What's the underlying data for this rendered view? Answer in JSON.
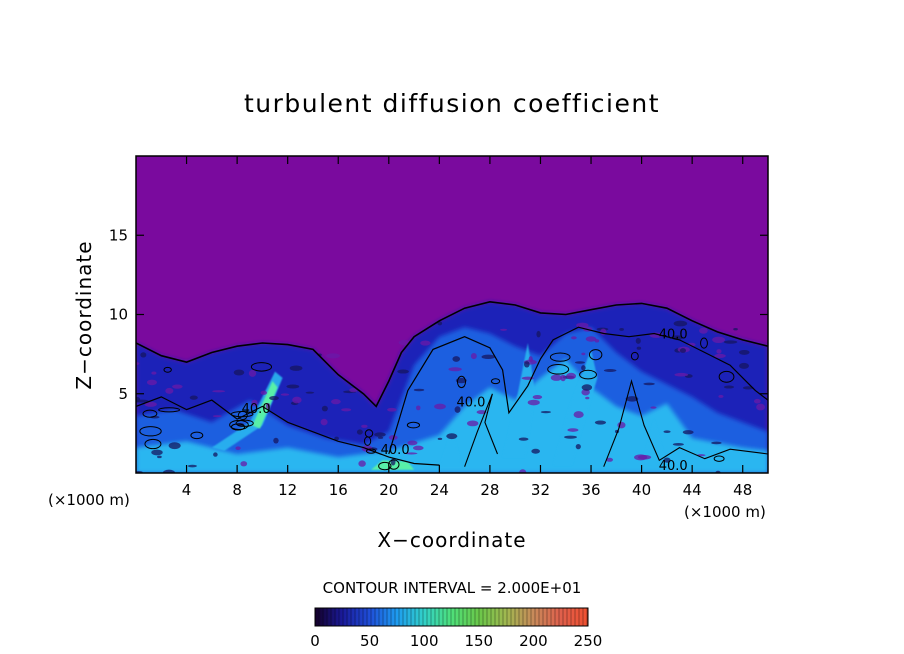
{
  "chart_data": {
    "type": "heatmap",
    "title": "turbulent diffusion coefficient",
    "xlabel": "X−coordinate",
    "ylabel": "Z−coordinate",
    "x_unit_left": "(×1000 m)",
    "x_unit_right": "(×1000 m)",
    "xlim": [
      0,
      50
    ],
    "ylim": [
      0,
      20
    ],
    "x_ticks": [
      4,
      8,
      12,
      16,
      20,
      24,
      28,
      32,
      36,
      40,
      44,
      48
    ],
    "y_ticks": [
      5,
      10,
      15
    ],
    "contour_interval_text": "CONTOUR INTERVAL = 2.000E+01",
    "contour_labels": [
      {
        "text": "40.0",
        "x": 42.5,
        "z": 8.5
      },
      {
        "text": "40.0",
        "x": 26.5,
        "z": 4.2
      },
      {
        "text": "40.0",
        "x": 20.5,
        "z": 1.2
      },
      {
        "text": "40.0",
        "x": 9.5,
        "z": 3.8
      },
      {
        "text": "40.0",
        "x": 42.5,
        "z": 0.2
      }
    ],
    "colorbar": {
      "range": [
        0,
        250
      ],
      "ticks": [
        0,
        50,
        100,
        150,
        200,
        250
      ],
      "colors": [
        "#140028",
        "#1a1a9a",
        "#1f4ed8",
        "#1e9cf0",
        "#32d1c8",
        "#4ee07a",
        "#6ac84a",
        "#a0b850",
        "#c88a5a",
        "#e0604c",
        "#f05030"
      ]
    },
    "background_value_color": "#7a0a9e",
    "field_colors": {
      "low": "#1c20b8",
      "mid": "#1f5fe0",
      "high": "#2ab6f0",
      "peak": "#58f0a8"
    }
  }
}
